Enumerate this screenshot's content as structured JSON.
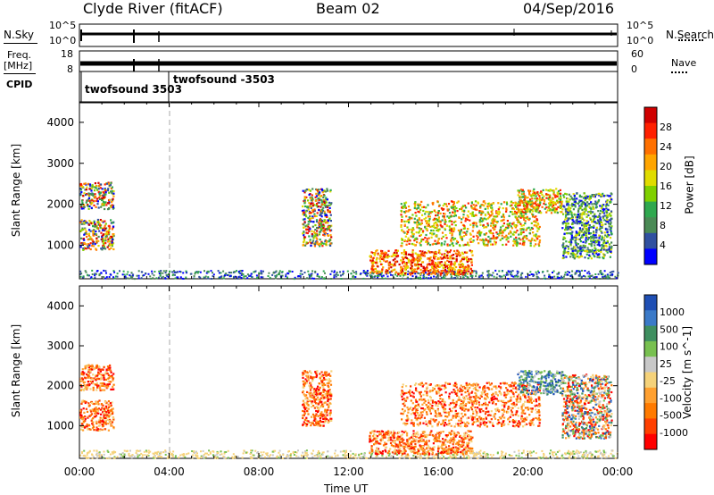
{
  "header": {
    "station": "Clyde River (fitACF)",
    "beam": "Beam 02",
    "date": "04/Sep/2016"
  },
  "aux": {
    "nsky_label": "N.Sky",
    "nsearch_label": "N.Search",
    "freq_label_1": "Freq.",
    "freq_label_2": "[MHz]",
    "nave_label": "Nave",
    "cpid_label": "CPID",
    "noise_ticks_left": [
      "10^5",
      "10^0"
    ],
    "noise_ticks_right": [
      "10^5",
      "10^0"
    ],
    "freq_ticks": [
      "18",
      "8"
    ],
    "nave_ticks": [
      "60",
      "0"
    ],
    "cpid_segments": [
      {
        "start_hour": 0.0,
        "text": "twofsound 3503"
      },
      {
        "start_hour": 3.9,
        "text": "twofsound -3503"
      }
    ]
  },
  "chart_data": [
    {
      "type": "heatmap",
      "name": "power-panel",
      "ylabel": "Slant Range [km]",
      "xlim": [
        0,
        24
      ],
      "ylim": [
        180,
        4500
      ],
      "y_ticks": [
        1000,
        2000,
        3000,
        4000
      ],
      "cbar_label": "Power [dB]",
      "cbar_ticks": [
        "28",
        "24",
        "20",
        "16",
        "12",
        "8",
        "4"
      ],
      "cbar_colors": [
        "#d00000",
        "#ff2000",
        "#ff7000",
        "#ffa500",
        "#e0dc00",
        "#7fd000",
        "#2fa84f",
        "#4a8a55",
        "#3050a0",
        "#0000ff"
      ],
      "scatter_regions": [
        {
          "t": [
            0.0,
            1.5
          ],
          "r": [
            1900,
            2550
          ],
          "v": "mixed"
        },
        {
          "t": [
            0.0,
            1.5
          ],
          "r": [
            900,
            1650
          ],
          "v": "mixed"
        },
        {
          "t": [
            9.9,
            11.2
          ],
          "r": [
            1000,
            2400
          ],
          "v": "mixed"
        },
        {
          "t": [
            12.9,
            17.5
          ],
          "r": [
            300,
            900
          ],
          "v": "high"
        },
        {
          "t": [
            14.3,
            20.5
          ],
          "r": [
            1000,
            2100
          ],
          "v": "mid"
        },
        {
          "t": [
            19.5,
            21.5
          ],
          "r": [
            1800,
            2400
          ],
          "v": "mid"
        },
        {
          "t": [
            21.5,
            23.7
          ],
          "r": [
            700,
            2300
          ],
          "v": "low"
        }
      ]
    },
    {
      "type": "heatmap",
      "name": "velocity-panel",
      "ylabel": "Slant Range [km]",
      "xlabel": "Time UT",
      "xlim": [
        0,
        24
      ],
      "ylim": [
        180,
        4500
      ],
      "y_ticks": [
        1000,
        2000,
        3000,
        4000
      ],
      "x_ticks": [
        "00:00",
        "04:00",
        "08:00",
        "12:00",
        "16:00",
        "20:00",
        "00:00"
      ],
      "cbar_label": "Velocity [m s^-1]",
      "cbar_ticks": [
        "1000",
        "500",
        "100",
        "25",
        "-25",
        "-100",
        "-500",
        "-1000"
      ],
      "cbar_colors": [
        "#1f4fb4",
        "#3b7ac8",
        "#3f8f60",
        "#78c050",
        "#c8c8c8",
        "#f5d27a",
        "#ffa030",
        "#ff7a00",
        "#ff4000",
        "#ff0000"
      ],
      "scatter_regions": [
        {
          "t": [
            0.0,
            1.5
          ],
          "r": [
            1900,
            2550
          ],
          "v": "neg"
        },
        {
          "t": [
            0.0,
            1.5
          ],
          "r": [
            900,
            1650
          ],
          "v": "neg"
        },
        {
          "t": [
            9.9,
            11.2
          ],
          "r": [
            1000,
            2400
          ],
          "v": "neg"
        },
        {
          "t": [
            12.9,
            17.5
          ],
          "r": [
            300,
            900
          ],
          "v": "neg"
        },
        {
          "t": [
            14.3,
            20.5
          ],
          "r": [
            1000,
            2100
          ],
          "v": "neg"
        },
        {
          "t": [
            19.5,
            21.5
          ],
          "r": [
            1800,
            2400
          ],
          "v": "pos"
        },
        {
          "t": [
            21.5,
            23.7
          ],
          "r": [
            700,
            2300
          ],
          "v": "mixed"
        }
      ]
    }
  ],
  "dashed_marker_time": "04:00"
}
